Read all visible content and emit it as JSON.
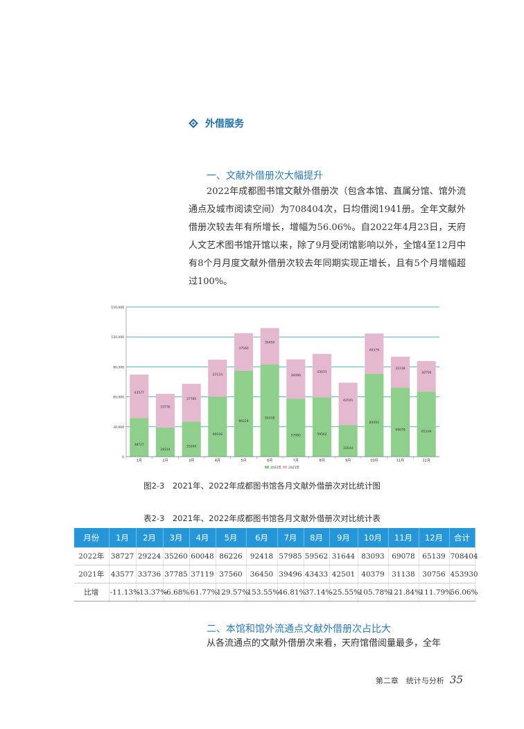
{
  "section": {
    "title": "外借服务"
  },
  "sub1": {
    "title": "一、文献外借册次大幅提升"
  },
  "para1": "2022年成都图书馆文献外借册次（包含本馆、直属分馆、馆外流通点及城市阅读空间）为708404次，日均借阅1941册。全年文献外借册次较去年有所增长，增幅为56.06%。自2022年4月23日，天府人文艺术图书馆开馆以来，除了9月受闭馆影响以外，全馆4至12月中有8个月月度文献外借册次较去年同期实现正增长，且有5个月增幅超过100%。",
  "figure_caption": "图2-3　2021年、2022年成都图书馆各月文献外借册次对比统计图",
  "table_caption": "表2-3　2021年、2022年成都图书馆各月文献外借册次对比统计表",
  "colors": {
    "series2022": "#8fcf8c",
    "series2021": "#e4b8cf",
    "grid": "#48b5b9",
    "table_header": "#2596d7",
    "accent": "#1f6fb0"
  },
  "chart_data": {
    "type": "bar",
    "stacked": true,
    "categories": [
      "1月",
      "2月",
      "3月",
      "4月",
      "5月",
      "6月",
      "7月",
      "8月",
      "9月",
      "10月",
      "11月",
      "12月"
    ],
    "series": [
      {
        "name": "2022年",
        "values": [
          38727,
          29224,
          35260,
          60048,
          86226,
          92418,
          57985,
          59562,
          31644,
          83093,
          69078,
          65139
        ]
      },
      {
        "name": "2021年",
        "values": [
          43577,
          33736,
          37785,
          37119,
          37560,
          36450,
          39496,
          43433,
          42501,
          40379,
          31138,
          30756
        ]
      }
    ],
    "ylim": [
      0,
      150000
    ],
    "yticks": [
      "0",
      "30,000",
      "60,000",
      "90,000",
      "120,000",
      "150,000"
    ],
    "grid": true,
    "legend": "bottom"
  },
  "table": {
    "headers": [
      "月份",
      "1月",
      "2月",
      "3月",
      "4月",
      "5月",
      "6月",
      "7月",
      "8月",
      "9月",
      "10月",
      "11月",
      "12月",
      "合计"
    ],
    "rows": [
      [
        "2022年",
        "38727",
        "29224",
        "35260",
        "60048",
        "86226",
        "92418",
        "57985",
        "59562",
        "31644",
        "83093",
        "69078",
        "65139",
        "708404"
      ],
      [
        "2021年",
        "43577",
        "33736",
        "37785",
        "37119",
        "37560",
        "36450",
        "39496",
        "43433",
        "42501",
        "40379",
        "31138",
        "30756",
        "453930"
      ],
      [
        "比增",
        "-11.13%",
        "-13.37%",
        "-6.68%",
        "61.77%",
        "129.57%",
        "153.55%",
        "46.81%",
        "37.14%",
        "-25.55%",
        "105.78%",
        "121.84%",
        "111.79%",
        "56.06%"
      ]
    ]
  },
  "sub2": {
    "title": "二、本馆和馆外流通点文献外借册次占比大"
  },
  "para2": "从各流通点的文献外借册次来看，天府馆借阅量最多，全年",
  "footer": {
    "chapter": "第二章　统计与分析",
    "page": "35"
  }
}
